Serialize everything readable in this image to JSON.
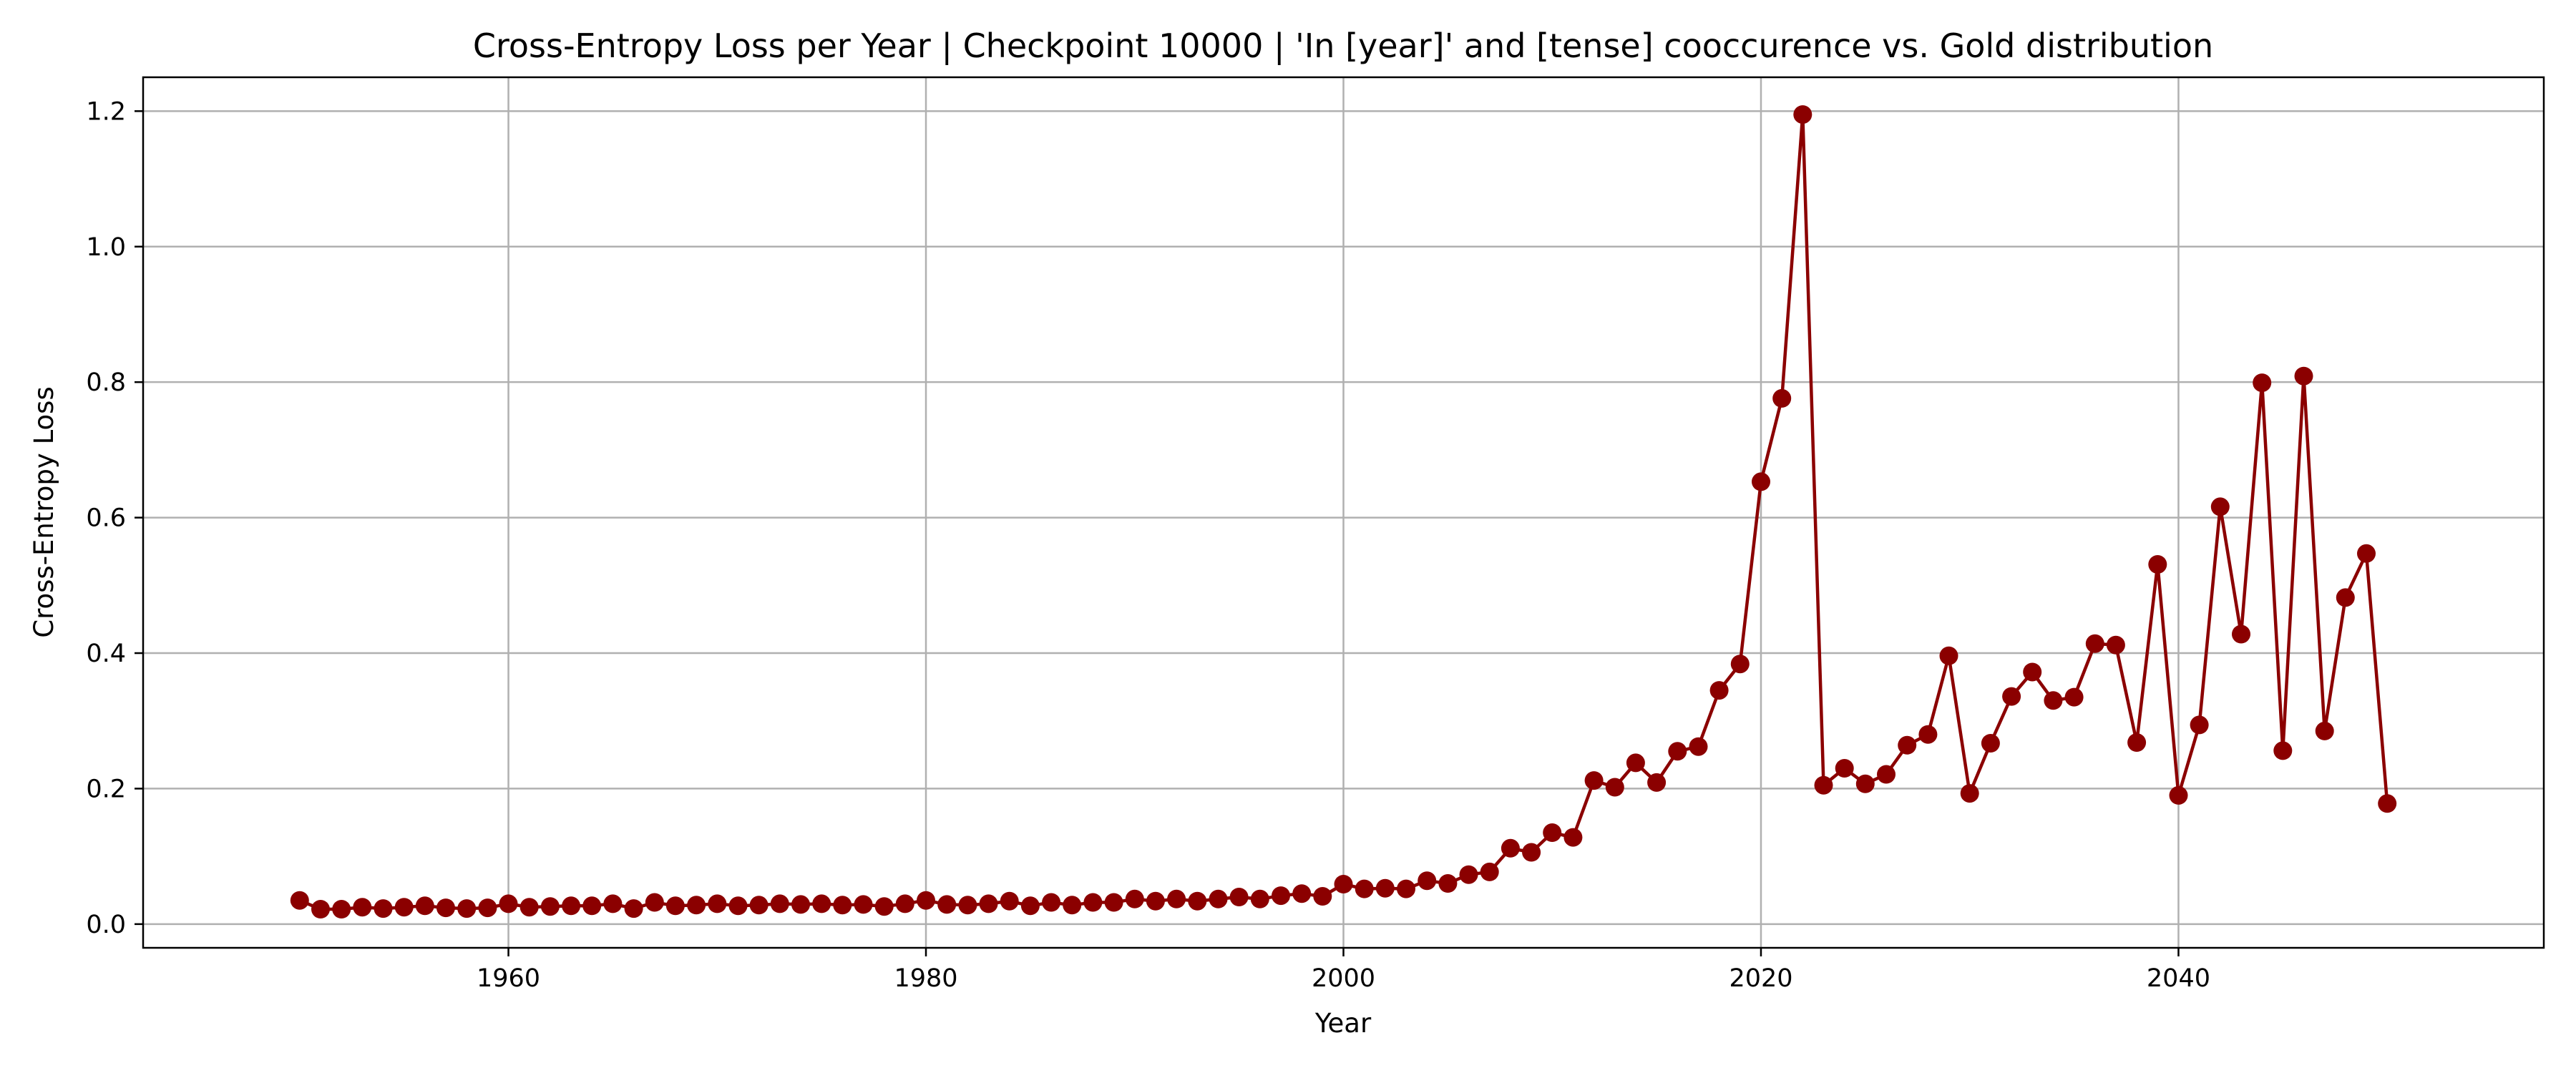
{
  "chart_data": {
    "type": "line",
    "title": "Cross-Entropy Loss per Year | Checkpoint 10000 | 'In [year]' and [tense] cooccurence vs. Gold distribution",
    "xlabel": "Year",
    "ylabel": "Cross-Entropy Loss",
    "xlim": [
      1942.5,
      2057.5
    ],
    "ylim": [
      -0.035,
      1.25
    ],
    "xticks": [
      1960,
      1980,
      2000,
      2020,
      2040
    ],
    "yticks": [
      0.0,
      0.2,
      0.4,
      0.6,
      0.8,
      1.0,
      1.2
    ],
    "ytick_labels": [
      "0.0",
      "0.2",
      "0.4",
      "0.6",
      "0.8",
      "1.0",
      "1.2"
    ],
    "grid": true,
    "color": "#8b0000",
    "series": [
      {
        "x": [
          1950,
          1951,
          1952,
          1953,
          1954,
          1955,
          1956,
          1957,
          1958,
          1959,
          1960,
          1961,
          1962,
          1963,
          1964,
          1965,
          1966,
          1967,
          1968,
          1969,
          1970,
          1971,
          1972,
          1973,
          1974,
          1975,
          1976,
          1977,
          1978,
          1979,
          1980,
          1981,
          1982,
          1983,
          1984,
          1985,
          1986,
          1987,
          1988,
          1989,
          1990,
          1991,
          1992,
          1993,
          1994,
          1995,
          1996,
          1997,
          1998,
          1999,
          2000,
          2001,
          2002,
          2003,
          2004,
          2005,
          2006,
          2007,
          2008,
          2009,
          2010,
          2011,
          2012,
          2013,
          2014,
          2015,
          2016,
          2017,
          2018,
          2019,
          2020,
          2021,
          2022,
          2023,
          2024,
          2025,
          2026,
          2027,
          2028,
          2029,
          2030,
          2031,
          2032,
          2033,
          2034,
          2035,
          2036,
          2037,
          2038,
          2039,
          2040,
          2041,
          2042,
          2043,
          2044,
          2045,
          2046,
          2047,
          2048,
          2049,
          2050
        ],
        "y": [
          0.035,
          0.022,
          0.022,
          0.025,
          0.023,
          0.025,
          0.027,
          0.024,
          0.023,
          0.024,
          0.03,
          0.025,
          0.026,
          0.027,
          0.027,
          0.03,
          0.023,
          0.032,
          0.027,
          0.028,
          0.03,
          0.027,
          0.028,
          0.03,
          0.029,
          0.03,
          0.028,
          0.029,
          0.026,
          0.03,
          0.035,
          0.029,
          0.028,
          0.03,
          0.034,
          0.027,
          0.032,
          0.028,
          0.032,
          0.032,
          0.037,
          0.034,
          0.037,
          0.034,
          0.037,
          0.04,
          0.037,
          0.042,
          0.045,
          0.041,
          0.059,
          0.052,
          0.053,
          0.052,
          0.064,
          0.06,
          0.073,
          0.077,
          0.112,
          0.106,
          0.135,
          0.128,
          0.212,
          0.202,
          0.238,
          0.209,
          0.255,
          0.262,
          0.345,
          0.384,
          0.653,
          0.776,
          1.195,
          0.205,
          0.23,
          0.207,
          0.221,
          0.264,
          0.28,
          0.396,
          0.193,
          0.267,
          0.336,
          0.372,
          0.33,
          0.335,
          0.414,
          0.412,
          0.268,
          0.531,
          0.19,
          0.294,
          0.616,
          0.428,
          0.799,
          0.256,
          0.809,
          0.285,
          0.482,
          0.547,
          0.178
        ]
      }
    ]
  }
}
